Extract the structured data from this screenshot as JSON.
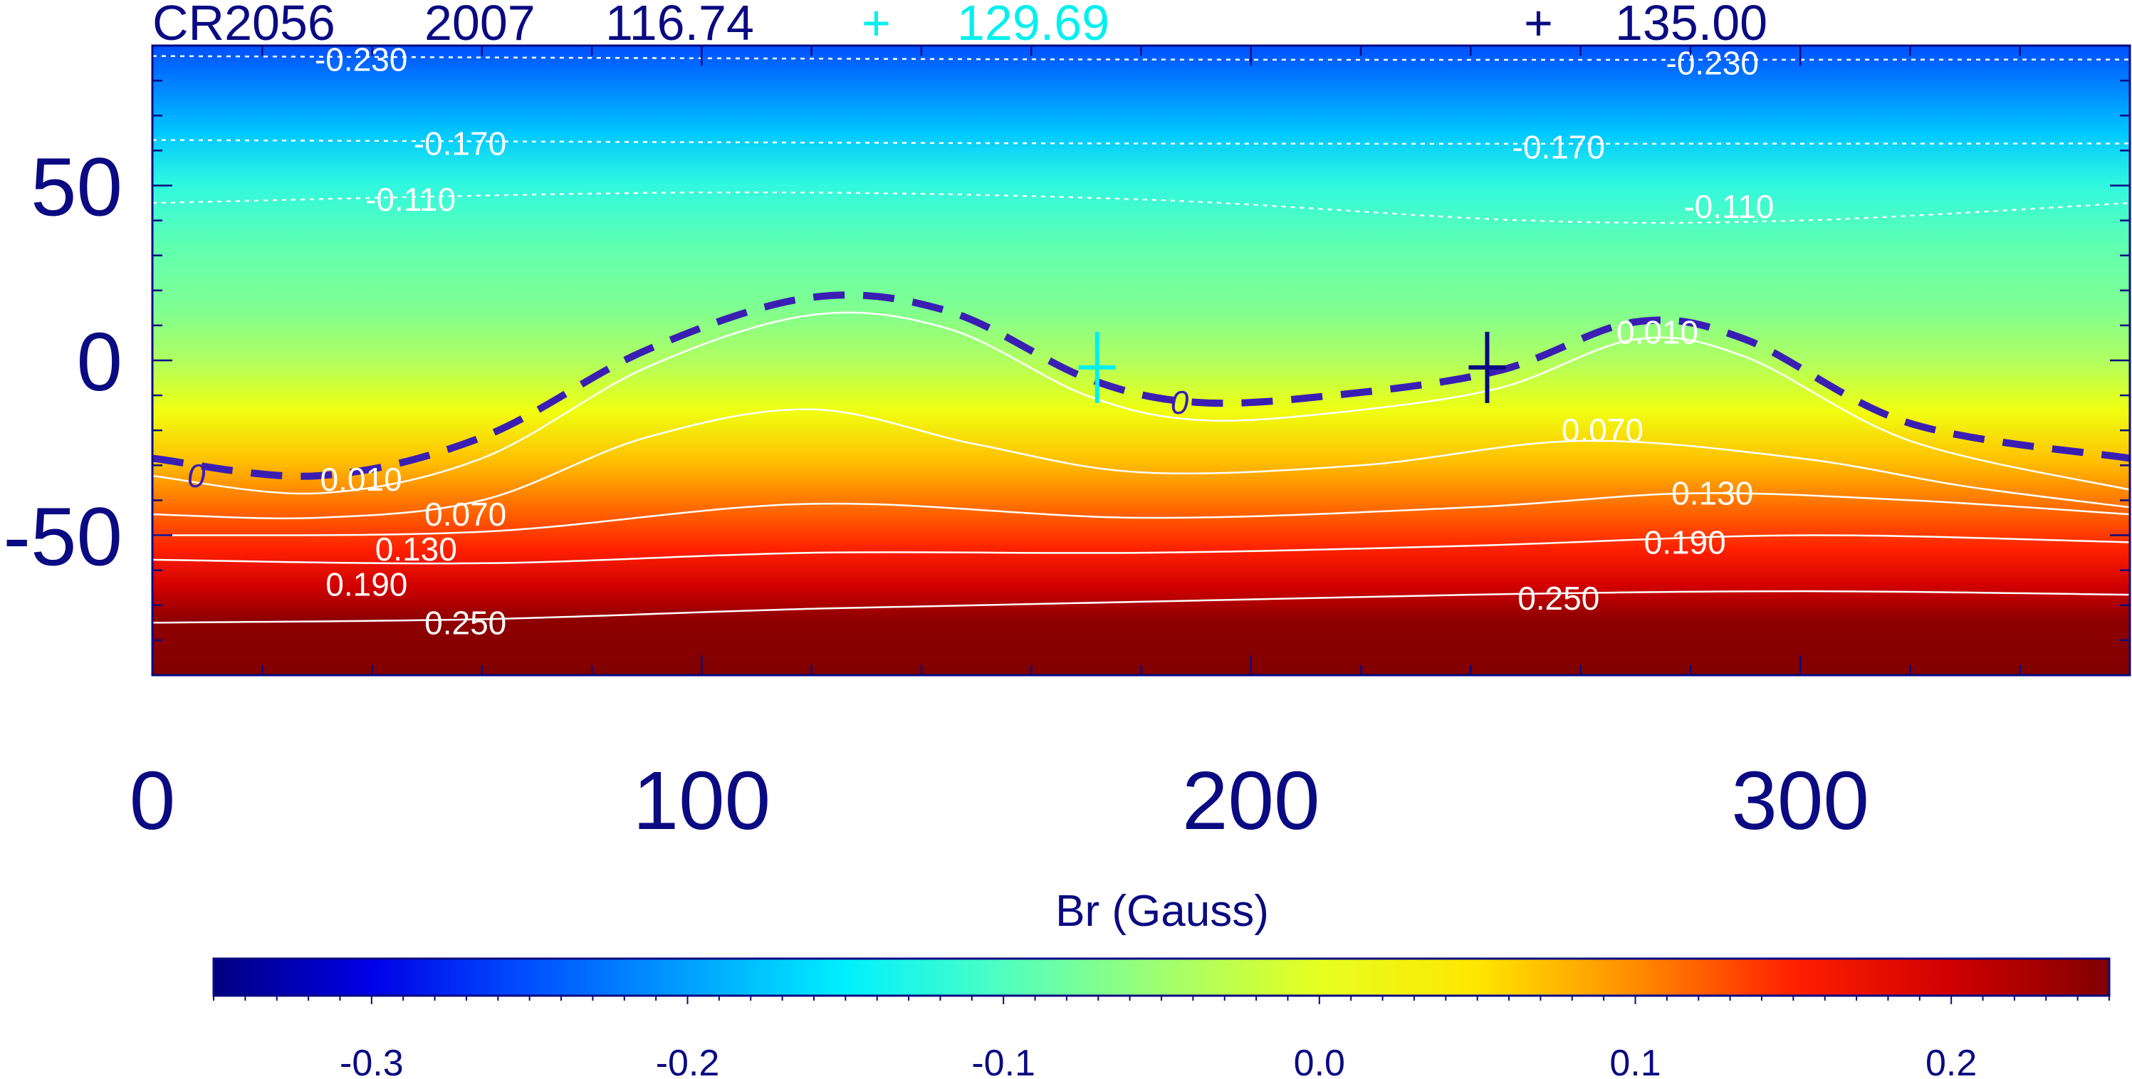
{
  "header": {
    "id": "CR2056",
    "year": "2007",
    "value1": "116.74",
    "marker_plus": "+",
    "value2": "129.69",
    "value3": "135.00"
  },
  "colors": {
    "navy": "#0a0a82",
    "cyan": "#00f0f0",
    "neutral_line": "#3a1eb4",
    "contour": "#ffffff"
  },
  "chart_data": {
    "type": "heatmap",
    "x_ticks": [
      "0",
      "100",
      "200",
      "300"
    ],
    "y_ticks": [
      "50",
      "0",
      "-50"
    ],
    "xlim": [
      0,
      360
    ],
    "ylim": [
      -90,
      90
    ],
    "colorbar": {
      "label": "Br (Gauss)",
      "range": [
        -0.35,
        0.25
      ],
      "ticks": [
        "-0.3",
        "-0.2",
        "-0.1",
        "0.0",
        "0.1",
        "0.2"
      ],
      "stops": [
        {
          "value": -0.35,
          "color": "#000080"
        },
        {
          "value": -0.3,
          "color": "#0000e6"
        },
        {
          "value": -0.25,
          "color": "#0050ff"
        },
        {
          "value": -0.2,
          "color": "#00a0ff"
        },
        {
          "value": -0.15,
          "color": "#00f0ff"
        },
        {
          "value": -0.1,
          "color": "#50ffc0"
        },
        {
          "value": -0.05,
          "color": "#a0ff70"
        },
        {
          "value": 0.0,
          "color": "#e6ff20"
        },
        {
          "value": 0.05,
          "color": "#ffe600"
        },
        {
          "value": 0.1,
          "color": "#ff8c00"
        },
        {
          "value": 0.15,
          "color": "#ff2000"
        },
        {
          "value": 0.2,
          "color": "#d00000"
        },
        {
          "value": 0.25,
          "color": "#800000"
        }
      ]
    },
    "neutral_line": {
      "label": "0",
      "points": [
        [
          0,
          -28
        ],
        [
          30,
          -33
        ],
        [
          60,
          -22
        ],
        [
          90,
          3
        ],
        [
          120,
          18
        ],
        [
          145,
          14
        ],
        [
          170,
          -5
        ],
        [
          190,
          -12
        ],
        [
          215,
          -10
        ],
        [
          245,
          -3
        ],
        [
          270,
          11
        ],
        [
          290,
          6
        ],
        [
          320,
          -18
        ],
        [
          360,
          -28
        ]
      ]
    },
    "contours": [
      {
        "level": "-0.230",
        "dashed": true,
        "points": [
          [
            0,
            87
          ],
          [
            180,
            86
          ],
          [
            360,
            86
          ]
        ]
      },
      {
        "level": "-0.170",
        "dashed": true,
        "points": [
          [
            0,
            63
          ],
          [
            180,
            62
          ],
          [
            360,
            62
          ]
        ]
      },
      {
        "level": "-0.110",
        "dashed": true,
        "points": [
          [
            0,
            45
          ],
          [
            100,
            48
          ],
          [
            180,
            46
          ],
          [
            250,
            40
          ],
          [
            300,
            40
          ],
          [
            360,
            45
          ]
        ]
      },
      {
        "level": "0.010",
        "dashed": false,
        "points": [
          [
            0,
            -33
          ],
          [
            30,
            -38
          ],
          [
            60,
            -28
          ],
          [
            90,
            -2
          ],
          [
            120,
            13
          ],
          [
            145,
            9
          ],
          [
            170,
            -10
          ],
          [
            190,
            -17
          ],
          [
            215,
            -15
          ],
          [
            245,
            -8
          ],
          [
            270,
            6
          ],
          [
            290,
            1
          ],
          [
            320,
            -23
          ],
          [
            360,
            -37
          ]
        ]
      },
      {
        "level": "0.070",
        "dashed": false,
        "points": [
          [
            0,
            -44
          ],
          [
            30,
            -45
          ],
          [
            60,
            -40
          ],
          [
            90,
            -22
          ],
          [
            120,
            -14
          ],
          [
            150,
            -24
          ],
          [
            180,
            -32
          ],
          [
            220,
            -30
          ],
          [
            260,
            -23
          ],
          [
            300,
            -28
          ],
          [
            330,
            -36
          ],
          [
            360,
            -42
          ]
        ]
      },
      {
        "level": "0.130",
        "dashed": false,
        "points": [
          [
            0,
            -50
          ],
          [
            60,
            -49
          ],
          [
            120,
            -41
          ],
          [
            180,
            -45
          ],
          [
            240,
            -42
          ],
          [
            280,
            -38
          ],
          [
            320,
            -40
          ],
          [
            360,
            -44
          ]
        ]
      },
      {
        "level": "0.190",
        "dashed": false,
        "points": [
          [
            0,
            -57
          ],
          [
            60,
            -58
          ],
          [
            120,
            -55
          ],
          [
            180,
            -55
          ],
          [
            240,
            -53
          ],
          [
            300,
            -50
          ],
          [
            360,
            -52
          ]
        ]
      },
      {
        "level": "0.250",
        "dashed": false,
        "points": [
          [
            0,
            -75
          ],
          [
            60,
            -74
          ],
          [
            120,
            -71
          ],
          [
            180,
            -69
          ],
          [
            240,
            -67
          ],
          [
            300,
            -66
          ],
          [
            360,
            -67
          ]
        ]
      }
    ],
    "contour_labels": [
      {
        "text": "-0.230",
        "x": 38,
        "y": 86
      },
      {
        "text": "-0.170",
        "x": 56,
        "y": 62
      },
      {
        "text": "-0.110",
        "x": 47,
        "y": 46
      },
      {
        "text": "-0.230",
        "x": 284,
        "y": 85
      },
      {
        "text": "-0.170",
        "x": 256,
        "y": 61
      },
      {
        "text": "-0.110",
        "x": 287,
        "y": 44
      },
      {
        "text": "0.010",
        "x": 38,
        "y": -34
      },
      {
        "text": "0.070",
        "x": 57,
        "y": -44
      },
      {
        "text": "0.130",
        "x": 48,
        "y": -54
      },
      {
        "text": "0.190",
        "x": 39,
        "y": -64
      },
      {
        "text": "0.250",
        "x": 57,
        "y": -75
      },
      {
        "text": "0.010",
        "x": 274,
        "y": 8
      },
      {
        "text": "0.070",
        "x": 264,
        "y": -20
      },
      {
        "text": "0.130",
        "x": 284,
        "y": -38
      },
      {
        "text": "0.190",
        "x": 279,
        "y": -52
      },
      {
        "text": "0.250",
        "x": 256,
        "y": -68
      },
      {
        "text": "0",
        "x": 8,
        "y": -33
      },
      {
        "text": "0",
        "x": 187,
        "y": -12
      }
    ],
    "markers": [
      {
        "name": "cyan",
        "x": 172,
        "y": -2
      },
      {
        "name": "navy",
        "x": 243,
        "y": -2
      }
    ]
  }
}
